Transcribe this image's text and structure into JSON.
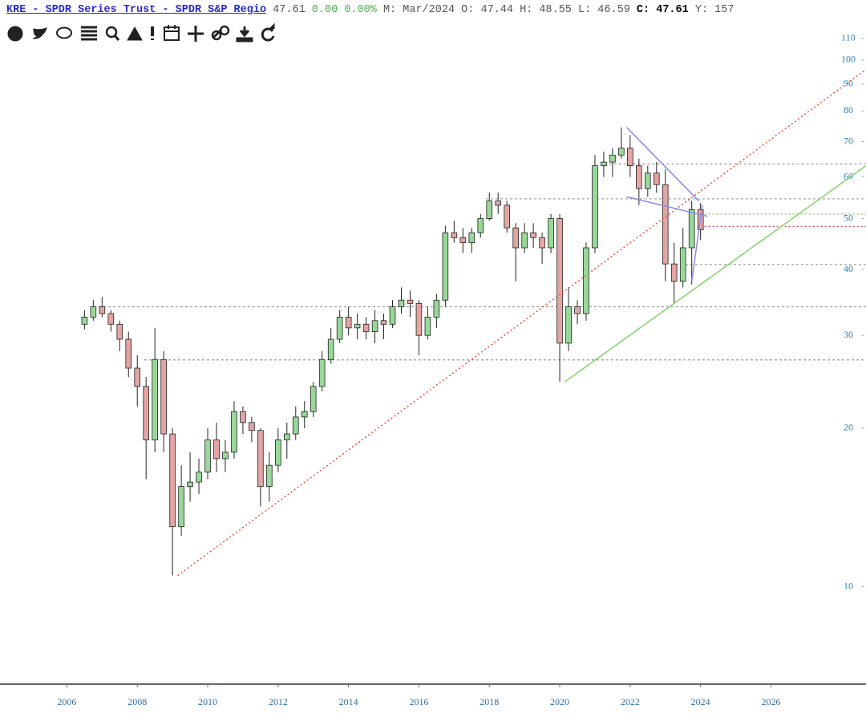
{
  "header": {
    "link": "KRE - SPDR Series Trust - SPDR S&P Regio",
    "last": "47.61",
    "change": "0.00",
    "change_pct": "0.00%",
    "period": "M: Mar/2024",
    "ohlc": "O: 47.44 H: 48.55 L: 46.59",
    "close_label": "C:",
    "close": "47.61",
    "extra": "Y: 157"
  },
  "chart_data": {
    "type": "candlestick",
    "log_y": true,
    "grid": false,
    "up_color": "#98d898",
    "down_color": "#e4a4a4",
    "edge_color": "#222",
    "xlim": [
      2004.1,
      2028.7
    ],
    "xticks": [
      2006,
      2008,
      2010,
      2012,
      2014,
      2016,
      2018,
      2020,
      2022,
      2024,
      2026
    ],
    "ylim": [
      6.6,
      113
    ],
    "yticks": [
      10,
      20,
      30,
      40,
      50,
      60,
      70,
      80,
      90,
      100,
      110
    ],
    "x": [
      2006.5,
      2006.75,
      2007,
      2007.25,
      2007.5,
      2007.75,
      2008,
      2008.25,
      2008.5,
      2008.75,
      2009,
      2009.25,
      2009.5,
      2009.75,
      2010,
      2010.25,
      2010.5,
      2010.75,
      2011,
      2011.25,
      2011.5,
      2011.75,
      2012,
      2012.25,
      2012.5,
      2012.75,
      2013,
      2013.25,
      2013.5,
      2013.75,
      2014,
      2014.25,
      2014.5,
      2014.75,
      2015,
      2015.25,
      2015.5,
      2015.75,
      2016,
      2016.25,
      2016.5,
      2016.75,
      2017,
      2017.25,
      2017.5,
      2017.75,
      2018,
      2018.25,
      2018.5,
      2018.75,
      2019,
      2019.25,
      2019.5,
      2019.75,
      2020,
      2020.25,
      2020.5,
      2020.75,
      2021,
      2021.25,
      2021.5,
      2021.75,
      2022,
      2022.25,
      2022.5,
      2022.75,
      2023,
      2023.25,
      2023.5,
      2023.75,
      2024
    ],
    "open": [
      31.5,
      32.5,
      34,
      33,
      31.5,
      29.5,
      26,
      24,
      19,
      27,
      19.5,
      13,
      15.5,
      15.8,
      16.5,
      19,
      17.5,
      18,
      21.5,
      20.5,
      19.8,
      15.5,
      17,
      19,
      19.5,
      21,
      21.5,
      24,
      27,
      29.5,
      32.5,
      31,
      31.5,
      30.5,
      32,
      31.5,
      34,
      35,
      34.5,
      30,
      32.5,
      35,
      47,
      46,
      45,
      47,
      50,
      54,
      53,
      48,
      44,
      47,
      46,
      44,
      50,
      29,
      34,
      33,
      44,
      63,
      64,
      66,
      68,
      63,
      57,
      61,
      58,
      41,
      38,
      44,
      52
    ],
    "high": [
      33.5,
      35,
      35.5,
      33.5,
      32,
      30.5,
      27.5,
      25,
      31,
      28,
      20,
      17,
      18,
      17.5,
      20,
      20.5,
      19,
      22.5,
      22,
      21,
      20,
      18,
      20,
      20.5,
      22,
      22.5,
      24.5,
      28,
      31,
      33.5,
      34,
      33,
      32.5,
      33.5,
      33,
      35,
      37,
      36.5,
      35,
      34,
      36,
      48.5,
      49.5,
      48,
      48,
      51,
      56,
      56,
      54,
      49,
      49,
      49,
      47,
      51,
      51,
      37,
      35,
      45,
      66,
      67,
      68,
      74.5,
      72,
      65,
      63,
      64,
      62,
      45,
      48,
      54,
      53.5
    ],
    "low": [
      30.8,
      32,
      32.5,
      30.5,
      28,
      25,
      22,
      16,
      18,
      18,
      10.5,
      12.5,
      14.5,
      15,
      16,
      16.5,
      16.5,
      17.5,
      19.5,
      18.8,
      14.2,
      14.5,
      16.5,
      17.5,
      19,
      20,
      21,
      23.5,
      26.5,
      29,
      30,
      29.5,
      29.5,
      29,
      29.5,
      31,
      33,
      32.5,
      27.5,
      29.5,
      31,
      34,
      45,
      43,
      43,
      46,
      49.5,
      51,
      47,
      38,
      43,
      44,
      41,
      43,
      24.5,
      28,
      31.5,
      32,
      43,
      60,
      60,
      65,
      60,
      53,
      55,
      56,
      38,
      34.5,
      37,
      37.5,
      45.5
    ],
    "close": [
      32.5,
      34,
      33,
      31.5,
      29.5,
      26,
      24,
      19,
      27,
      19.5,
      13,
      15.5,
      15.8,
      16.5,
      19,
      17.5,
      18,
      21.5,
      20.5,
      19.8,
      15.5,
      17,
      19,
      19.5,
      21,
      21.5,
      24,
      27,
      29.5,
      32.5,
      31,
      31.5,
      30.5,
      32,
      31.5,
      34,
      35,
      34.5,
      30,
      32.5,
      35,
      47,
      46,
      45,
      47,
      50,
      54,
      53,
      48,
      44,
      47,
      46,
      44,
      50,
      29,
      34,
      33,
      44,
      63,
      64,
      66,
      68,
      63,
      57,
      61,
      58,
      41,
      38,
      44,
      52,
      47.61
    ],
    "hlines": [
      {
        "value": 34,
        "from": 2006.9,
        "color": "#999",
        "dash": "3,3"
      },
      {
        "value": 26.95,
        "from": 2008.2,
        "color": "#999",
        "dash": "3,3"
      },
      {
        "value": 40.9,
        "from": 2023.3,
        "color": "#999",
        "dash": "3,3"
      },
      {
        "value": 54.5,
        "from": 2017.9,
        "color": "#999",
        "dash": "3,3"
      },
      {
        "value": 63.5,
        "from": 2021.4,
        "color": "#999",
        "dash": "3,3"
      },
      {
        "value": 51,
        "from": 2024,
        "color": "#6ad050",
        "dash": "2,3"
      },
      {
        "value": 48.3,
        "from": 2024,
        "color": "#e04040",
        "dash": "2,3"
      }
    ],
    "trendlines": [
      {
        "x": [
          2009.15,
          2028.7
        ],
        "y": [
          10.5,
          96
        ],
        "color": "#e85040",
        "dash": "2,3"
      },
      {
        "x": [
          2020.15,
          2028.7
        ],
        "y": [
          24.5,
          63
        ],
        "color": "#80d468",
        "dash": ""
      },
      {
        "x": [
          2021.9,
          2023.95
        ],
        "y": [
          74.5,
          54
        ],
        "color": "#8a8ae8",
        "dash": ""
      },
      {
        "x": [
          2021.9,
          2024.2
        ],
        "y": [
          55,
          50.5
        ],
        "color": "#8a8ae8",
        "dash": ""
      },
      {
        "x": [
          2023.75,
          2024.05
        ],
        "y": [
          38,
          53
        ],
        "color": "#8a8ae8",
        "dash": ""
      }
    ]
  }
}
